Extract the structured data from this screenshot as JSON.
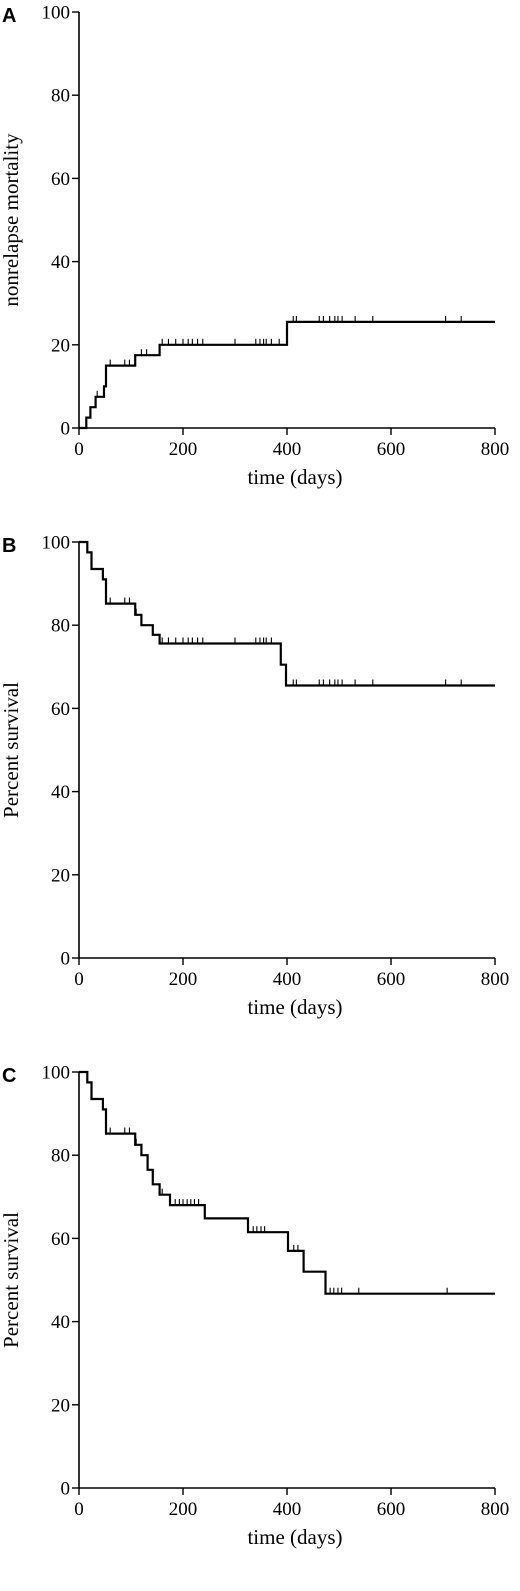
{
  "chart_data": [
    {
      "panel": "A",
      "type": "line",
      "title": "",
      "xlabel": "time (days)",
      "ylabel": "nonrelapse mortality",
      "xlim": [
        0,
        800
      ],
      "ylim": [
        0,
        100
      ],
      "xticks": [
        0,
        200,
        400,
        600,
        800
      ],
      "yticks": [
        0,
        20,
        40,
        60,
        80,
        100
      ],
      "series": [
        {
          "step": [
            [
              0,
              0
            ],
            [
              14,
              0
            ],
            [
              14,
              2.5
            ],
            [
              22,
              2.5
            ],
            [
              22,
              5
            ],
            [
              32,
              5
            ],
            [
              32,
              7.5
            ],
            [
              48,
              7.5
            ],
            [
              48,
              10
            ],
            [
              52,
              10
            ],
            [
              52,
              15
            ],
            [
              108,
              15
            ],
            [
              108,
              17.5
            ],
            [
              155,
              17.5
            ],
            [
              155,
              20
            ],
            [
              400,
              20
            ],
            [
              400,
              25.5
            ],
            [
              800,
              25.5
            ]
          ],
          "censored": [
            [
              35,
              7.5
            ],
            [
              60,
              15
            ],
            [
              88,
              15
            ],
            [
              97,
              15
            ],
            [
              120,
              17.5
            ],
            [
              130,
              17.5
            ],
            [
              160,
              20
            ],
            [
              172,
              20
            ],
            [
              186,
              20
            ],
            [
              200,
              20
            ],
            [
              210,
              20
            ],
            [
              218,
              20
            ],
            [
              228,
              20
            ],
            [
              238,
              20
            ],
            [
              300,
              20
            ],
            [
              340,
              20
            ],
            [
              348,
              20
            ],
            [
              355,
              20
            ],
            [
              360,
              20
            ],
            [
              370,
              20
            ],
            [
              385,
              20
            ],
            [
              412,
              25.5
            ],
            [
              418,
              25.5
            ],
            [
              462,
              25.5
            ],
            [
              470,
              25.5
            ],
            [
              482,
              25.5
            ],
            [
              492,
              25.5
            ],
            [
              498,
              25.5
            ],
            [
              506,
              25.5
            ],
            [
              531,
              25.5
            ],
            [
              565,
              25.5
            ],
            [
              705,
              25.5
            ],
            [
              735,
              25.5
            ]
          ]
        }
      ]
    },
    {
      "panel": "B",
      "type": "line",
      "title": "",
      "xlabel": "time (days)",
      "ylabel": "Percent survival",
      "xlim": [
        0,
        800
      ],
      "ylim": [
        0,
        100
      ],
      "xticks": [
        0,
        200,
        400,
        600,
        800
      ],
      "yticks": [
        0,
        20,
        40,
        60,
        80,
        100
      ],
      "series": [
        {
          "step": [
            [
              0,
              100
            ],
            [
              16,
              100
            ],
            [
              16,
              97.5
            ],
            [
              24,
              97.5
            ],
            [
              24,
              93.5
            ],
            [
              46,
              93.5
            ],
            [
              46,
              91
            ],
            [
              52,
              91
            ],
            [
              52,
              85.2
            ],
            [
              108,
              85.2
            ],
            [
              108,
              82.5
            ],
            [
              120,
              82.5
            ],
            [
              120,
              80
            ],
            [
              142,
              80
            ],
            [
              142,
              77.7
            ],
            [
              155,
              77.7
            ],
            [
              155,
              75.6
            ],
            [
              388,
              75.6
            ],
            [
              388,
              70.5
            ],
            [
              398,
              70.5
            ],
            [
              398,
              65.5
            ],
            [
              800,
              65.5
            ]
          ],
          "censored": [
            [
              60,
              85.2
            ],
            [
              88,
              85.2
            ],
            [
              97,
              85.2
            ],
            [
              110,
              82.5
            ],
            [
              160,
              75.6
            ],
            [
              172,
              75.6
            ],
            [
              186,
              75.6
            ],
            [
              200,
              75.6
            ],
            [
              210,
              75.6
            ],
            [
              218,
              75.6
            ],
            [
              228,
              75.6
            ],
            [
              238,
              75.6
            ],
            [
              300,
              75.6
            ],
            [
              340,
              75.6
            ],
            [
              348,
              75.6
            ],
            [
              355,
              75.6
            ],
            [
              360,
              75.6
            ],
            [
              370,
              75.6
            ],
            [
              412,
              65.5
            ],
            [
              418,
              65.5
            ],
            [
              462,
              65.5
            ],
            [
              470,
              65.5
            ],
            [
              482,
              65.5
            ],
            [
              492,
              65.5
            ],
            [
              498,
              65.5
            ],
            [
              506,
              65.5
            ],
            [
              531,
              65.5
            ],
            [
              565,
              65.5
            ],
            [
              705,
              65.5
            ],
            [
              735,
              65.5
            ]
          ]
        }
      ]
    },
    {
      "panel": "C",
      "type": "line",
      "title": "",
      "xlabel": "time (days)",
      "ylabel": "Percent survival",
      "xlim": [
        0,
        800
      ],
      "ylim": [
        0,
        100
      ],
      "xticks": [
        0,
        200,
        400,
        600,
        800
      ],
      "yticks": [
        0,
        20,
        40,
        60,
        80,
        100
      ],
      "series": [
        {
          "step": [
            [
              0,
              100
            ],
            [
              16,
              100
            ],
            [
              16,
              97.5
            ],
            [
              24,
              97.5
            ],
            [
              24,
              93.5
            ],
            [
              46,
              93.5
            ],
            [
              46,
              91
            ],
            [
              52,
              91
            ],
            [
              52,
              85.2
            ],
            [
              108,
              85.2
            ],
            [
              108,
              82.5
            ],
            [
              120,
              82.5
            ],
            [
              120,
              80
            ],
            [
              132,
              80
            ],
            [
              132,
              76.5
            ],
            [
              142,
              76.5
            ],
            [
              142,
              73
            ],
            [
              155,
              73
            ],
            [
              155,
              70.5
            ],
            [
              175,
              70.5
            ],
            [
              175,
              68
            ],
            [
              242,
              68
            ],
            [
              242,
              64.8
            ],
            [
              325,
              64.8
            ],
            [
              325,
              61.5
            ],
            [
              402,
              61.5
            ],
            [
              402,
              57
            ],
            [
              432,
              57
            ],
            [
              432,
              52
            ],
            [
              474,
              52
            ],
            [
              474,
              46.7
            ],
            [
              800,
              46.7
            ]
          ],
          "censored": [
            [
              60,
              85.2
            ],
            [
              88,
              85.2
            ],
            [
              97,
              85.2
            ],
            [
              110,
              82.5
            ],
            [
              160,
              70.5
            ],
            [
              185,
              68
            ],
            [
              193,
              68
            ],
            [
              200,
              68
            ],
            [
              208,
              68
            ],
            [
              215,
              68
            ],
            [
              222,
              68
            ],
            [
              230,
              68
            ],
            [
              335,
              61.5
            ],
            [
              342,
              61.5
            ],
            [
              350,
              61.5
            ],
            [
              357,
              61.5
            ],
            [
              413,
              57
            ],
            [
              421,
              57
            ],
            [
              483,
              46.7
            ],
            [
              490,
              46.7
            ],
            [
              498,
              46.7
            ],
            [
              505,
              46.7
            ],
            [
              538,
              46.7
            ],
            [
              708,
              46.7
            ]
          ]
        }
      ]
    }
  ]
}
